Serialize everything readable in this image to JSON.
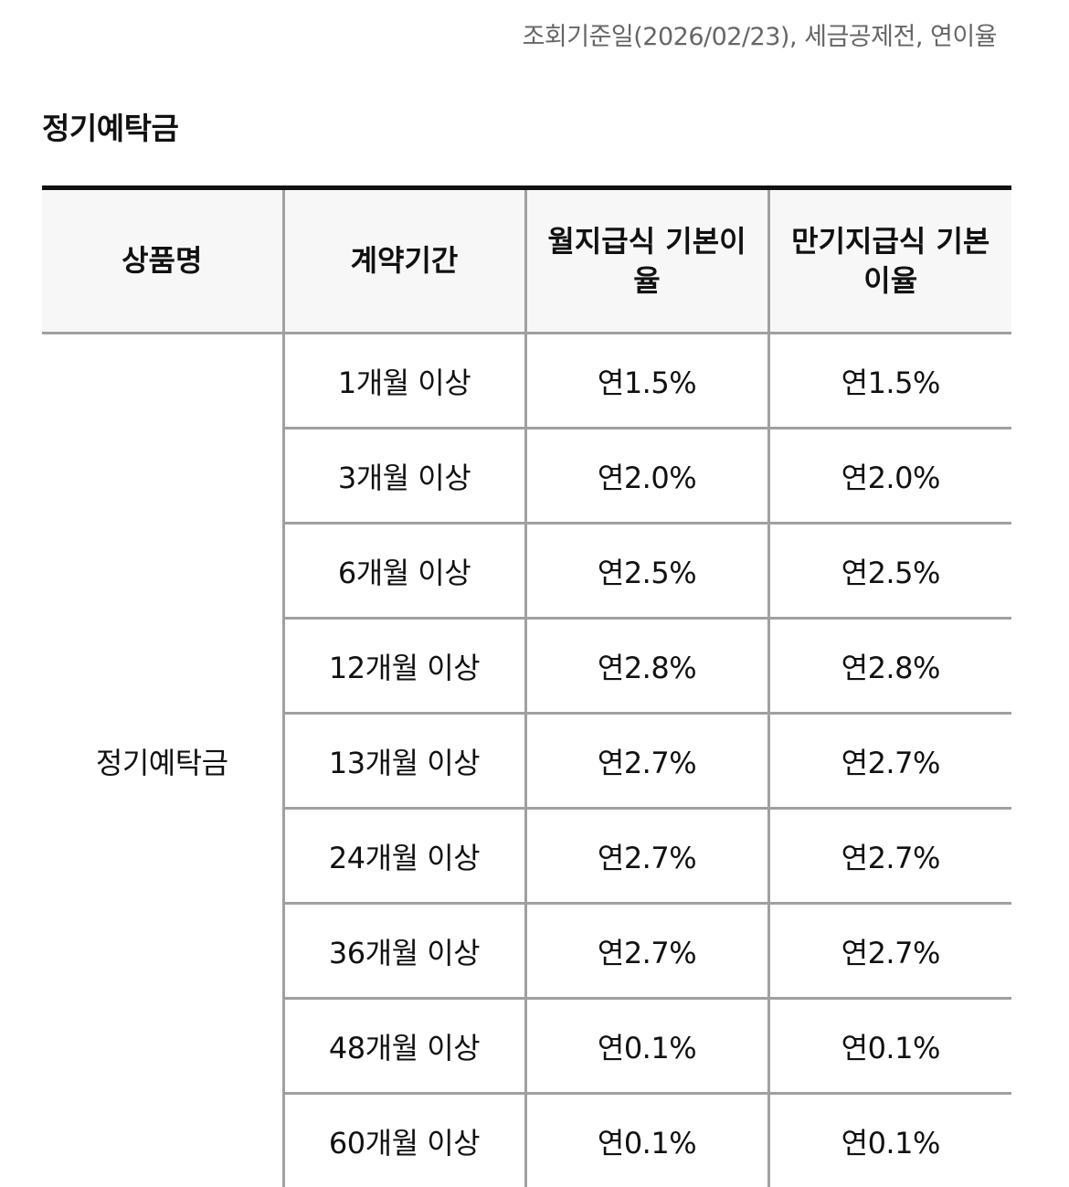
{
  "reference_note": "조회기준일(2026/02/23), 세금공제전, 연이율",
  "section_title": "정기예탁금",
  "table": {
    "headers": [
      "상품명",
      "계약기간",
      "월지급식 기본이율",
      "만기지급식 기본이율"
    ],
    "product_name": "정기예탁금",
    "rows": [
      {
        "term": "1개월 이상",
        "monthly": "연1.5%",
        "maturity": "연1.5%"
      },
      {
        "term": "3개월 이상",
        "monthly": "연2.0%",
        "maturity": "연2.0%"
      },
      {
        "term": "6개월 이상",
        "monthly": "연2.5%",
        "maturity": "연2.5%"
      },
      {
        "term": "12개월 이상",
        "monthly": "연2.8%",
        "maturity": "연2.8%"
      },
      {
        "term": "13개월 이상",
        "monthly": "연2.7%",
        "maturity": "연2.7%"
      },
      {
        "term": "24개월 이상",
        "monthly": "연2.7%",
        "maturity": "연2.7%"
      },
      {
        "term": "36개월 이상",
        "monthly": "연2.7%",
        "maturity": "연2.7%"
      },
      {
        "term": "48개월 이상",
        "monthly": "연0.1%",
        "maturity": "연0.1%"
      },
      {
        "term": "60개월 이상",
        "monthly": "연0.1%",
        "maturity": "연0.1%"
      }
    ]
  }
}
